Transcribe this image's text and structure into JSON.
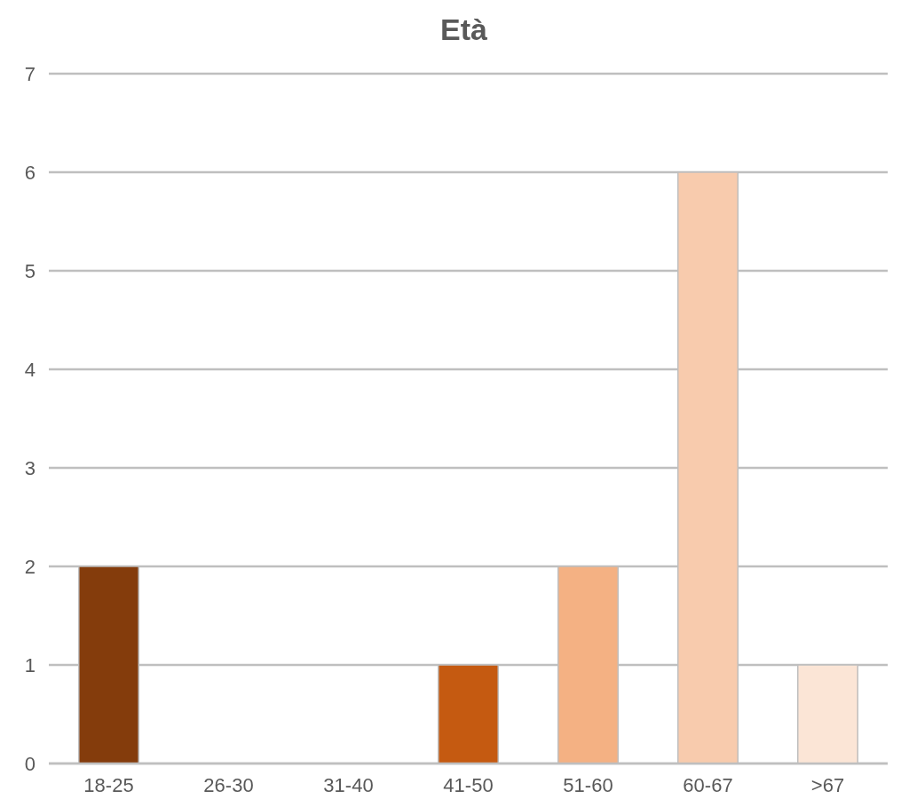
{
  "chart_data": {
    "type": "bar",
    "title": "Età",
    "categories": [
      "18-25",
      "26-30",
      "31-40",
      "41-50",
      "51-60",
      "60-67",
      ">67"
    ],
    "values": [
      2,
      0,
      0,
      1,
      2,
      6,
      1
    ],
    "colors": [
      "#843c0c",
      "#a0480e",
      "#b35010",
      "#c55a11",
      "#f4b183",
      "#f8cbad",
      "#fbe5d6"
    ],
    "ylim": [
      0,
      7
    ],
    "yticks": [
      0,
      1,
      2,
      3,
      4,
      5,
      6,
      7
    ],
    "grid": "y"
  }
}
